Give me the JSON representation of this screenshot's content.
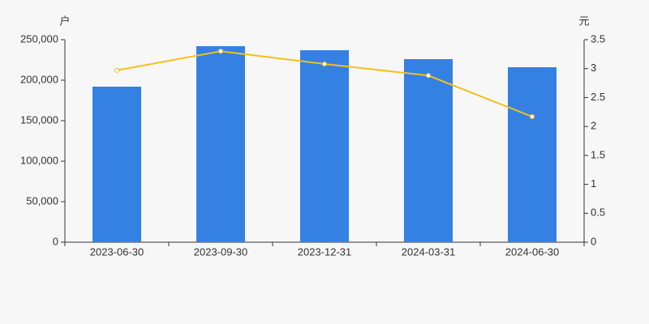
{
  "chart_data": {
    "type": "bar",
    "y_label": "户",
    "y2_label": "元",
    "categories": [
      "2023-06-30",
      "2023-09-30",
      "2023-12-31",
      "2024-03-31",
      "2024-06-30"
    ],
    "series": [
      {
        "type": "bar",
        "color": "#3481e3",
        "values": [
          192000,
          242000,
          237000,
          226000,
          216000
        ]
      },
      {
        "type": "line",
        "axis": "y2",
        "color": "#f5c01a",
        "values": [
          2.97,
          3.3,
          3.08,
          2.88,
          2.17
        ]
      }
    ],
    "ylim": [
      0,
      250000
    ],
    "yticks": [
      0,
      {
        "value": 50000,
        "label": "50,000"
      },
      {
        "value": 100000,
        "label": "100,000"
      },
      {
        "value": 150000,
        "label": "150,000"
      },
      {
        "value": 200000,
        "label": "200,000"
      },
      {
        "value": 250000,
        "label": "250,000"
      }
    ],
    "y2lim": [
      0,
      3.5
    ],
    "y2ticks": [
      0,
      0.5,
      1,
      1.5,
      2,
      2.5,
      3,
      3.5
    ]
  }
}
